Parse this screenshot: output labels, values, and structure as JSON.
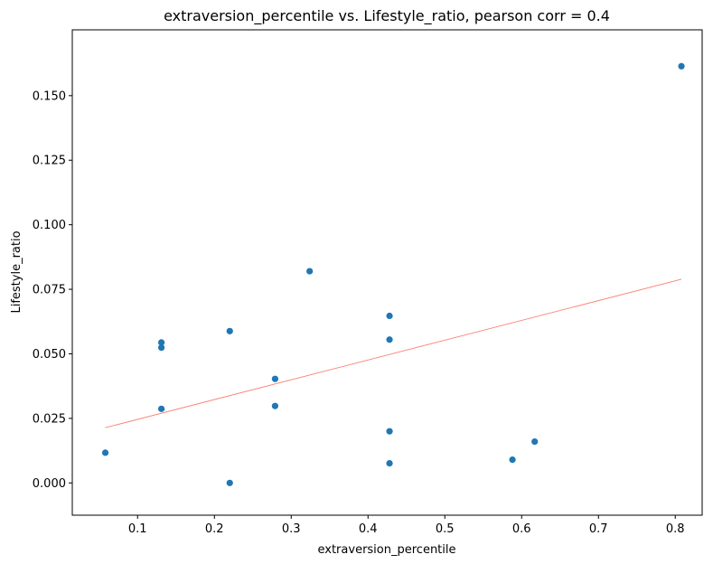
{
  "chart_data": {
    "type": "scatter",
    "title": "extraversion_percentile vs. Lifestyle_ratio, pearson corr = 0.4",
    "xlabel": "extraversion_percentile",
    "ylabel": "Lifestyle_ratio",
    "xlim": [
      0.015,
      0.835
    ],
    "ylim": [
      -0.0125,
      0.1755
    ],
    "xticks": [
      0.1,
      0.2,
      0.3,
      0.4,
      0.5,
      0.6,
      0.7,
      0.8
    ],
    "xtick_labels": [
      "0.1",
      "0.2",
      "0.3",
      "0.4",
      "0.5",
      "0.6",
      "0.7",
      "0.8"
    ],
    "yticks": [
      0.0,
      0.025,
      0.05,
      0.075,
      0.1,
      0.125,
      0.15
    ],
    "ytick_labels": [
      "0.000",
      "0.025",
      "0.050",
      "0.075",
      "0.100",
      "0.125",
      "0.150"
    ],
    "grid": false,
    "point_color": "#1f77b4",
    "points": [
      {
        "x": 0.058,
        "y": 0.0117
      },
      {
        "x": 0.131,
        "y": 0.0544
      },
      {
        "x": 0.131,
        "y": 0.0524
      },
      {
        "x": 0.131,
        "y": 0.0287
      },
      {
        "x": 0.22,
        "y": 0.0588
      },
      {
        "x": 0.22,
        "y": 0.0
      },
      {
        "x": 0.279,
        "y": 0.0403
      },
      {
        "x": 0.279,
        "y": 0.0298
      },
      {
        "x": 0.324,
        "y": 0.082
      },
      {
        "x": 0.428,
        "y": 0.0647
      },
      {
        "x": 0.428,
        "y": 0.0555
      },
      {
        "x": 0.428,
        "y": 0.02
      },
      {
        "x": 0.428,
        "y": 0.0076
      },
      {
        "x": 0.588,
        "y": 0.009
      },
      {
        "x": 0.617,
        "y": 0.016
      },
      {
        "x": 0.808,
        "y": 0.1614
      }
    ],
    "trendline": {
      "color": "#fa8072",
      "points": [
        {
          "x": 0.058,
          "y": 0.0214
        },
        {
          "x": 0.808,
          "y": 0.0789
        }
      ]
    }
  }
}
